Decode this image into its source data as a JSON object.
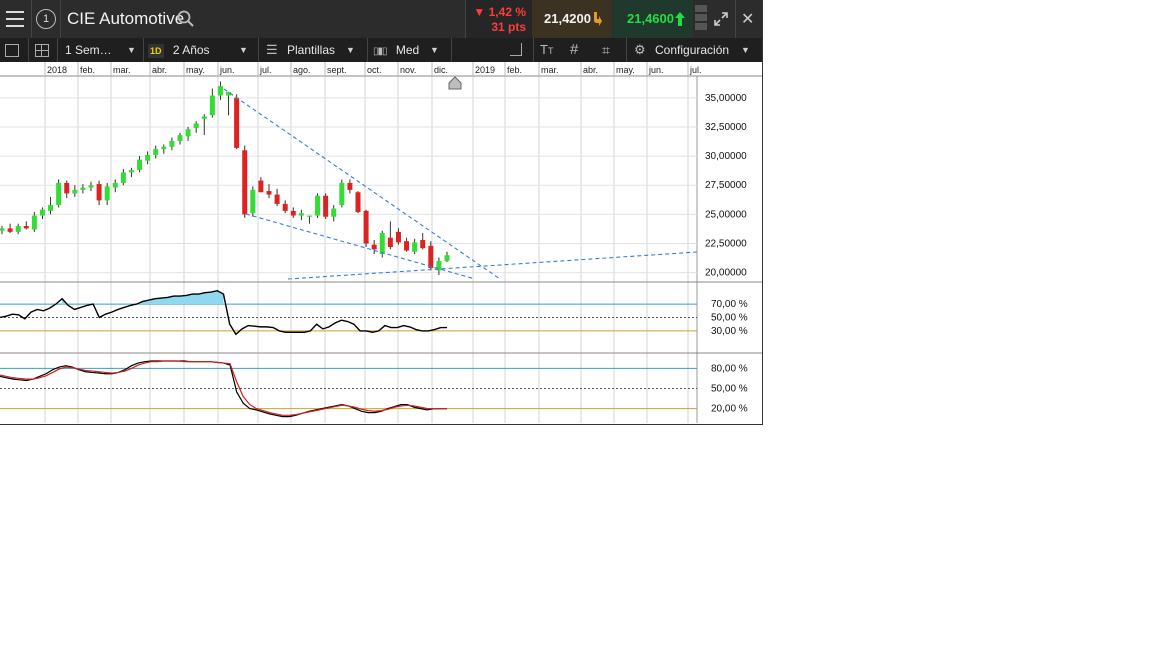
{
  "header": {
    "title": "CIE Automotive",
    "change_pct": "▼ 1,42 %",
    "change_pts": "31 pts",
    "bid": "21,4200",
    "ask": "21,4600",
    "colors": {
      "down": "#ff3b3b",
      "bid_bg": "#3b3222",
      "ask_bg": "#1f3a2c",
      "ask_text": "#22dd44"
    }
  },
  "toolbar": {
    "interval": "1 Sem…",
    "interval_badge": "1D",
    "range": "2 Años",
    "templates": "Plantillas",
    "price_type": "Med",
    "config": "Configuración"
  },
  "chart_data": [
    {
      "type": "candlestick",
      "x_ticks": [
        "2018",
        "feb.",
        "mar.",
        "abr.",
        "may.",
        "jun.",
        "jul.",
        "ago.",
        "sept.",
        "oct.",
        "nov.",
        "dic.",
        "2019",
        "feb.",
        "mar.",
        "abr.",
        "may.",
        "jun.",
        "jul."
      ],
      "y_ticks": [
        "35,00000",
        "32,50000",
        "30,00000",
        "27,50000",
        "25,00000",
        "22,50000",
        "20,00000"
      ],
      "ylim": [
        19.2,
        36.7
      ],
      "colors": {
        "up": "#33dd33",
        "down": "#dd2222",
        "trendline": "#3a7ecf"
      },
      "candles": [
        {
          "o": 23.6,
          "h": 24.0,
          "l": 23.3,
          "c": 23.8
        },
        {
          "o": 23.8,
          "h": 24.2,
          "l": 23.4,
          "c": 23.5
        },
        {
          "o": 23.5,
          "h": 24.2,
          "l": 23.3,
          "c": 24.0
        },
        {
          "o": 24.0,
          "h": 24.4,
          "l": 23.7,
          "c": 23.8
        },
        {
          "o": 23.7,
          "h": 25.2,
          "l": 23.5,
          "c": 24.9
        },
        {
          "o": 24.9,
          "h": 25.6,
          "l": 24.6,
          "c": 25.4
        },
        {
          "o": 25.3,
          "h": 26.5,
          "l": 25.0,
          "c": 25.8
        },
        {
          "o": 25.8,
          "h": 28.0,
          "l": 25.6,
          "c": 27.7
        },
        {
          "o": 27.7,
          "h": 27.9,
          "l": 26.4,
          "c": 26.8
        },
        {
          "o": 26.8,
          "h": 27.5,
          "l": 26.5,
          "c": 27.1
        },
        {
          "o": 27.1,
          "h": 27.6,
          "l": 26.8,
          "c": 27.3
        },
        {
          "o": 27.3,
          "h": 27.8,
          "l": 27.0,
          "c": 27.5
        },
        {
          "o": 27.6,
          "h": 27.9,
          "l": 25.8,
          "c": 26.2
        },
        {
          "o": 26.2,
          "h": 27.7,
          "l": 25.8,
          "c": 27.4
        },
        {
          "o": 27.3,
          "h": 28.0,
          "l": 26.9,
          "c": 27.7
        },
        {
          "o": 27.7,
          "h": 28.9,
          "l": 27.5,
          "c": 28.6
        },
        {
          "o": 28.6,
          "h": 29.0,
          "l": 28.2,
          "c": 28.8
        },
        {
          "o": 28.8,
          "h": 30.0,
          "l": 28.6,
          "c": 29.7
        },
        {
          "o": 29.6,
          "h": 30.4,
          "l": 29.3,
          "c": 30.1
        },
        {
          "o": 30.1,
          "h": 30.9,
          "l": 29.8,
          "c": 30.6
        },
        {
          "o": 30.6,
          "h": 31.0,
          "l": 30.2,
          "c": 30.8
        },
        {
          "o": 30.8,
          "h": 31.6,
          "l": 30.5,
          "c": 31.3
        },
        {
          "o": 31.3,
          "h": 32.0,
          "l": 31.0,
          "c": 31.8
        },
        {
          "o": 31.7,
          "h": 32.5,
          "l": 31.3,
          "c": 32.3
        },
        {
          "o": 32.4,
          "h": 33.0,
          "l": 32.0,
          "c": 32.8
        },
        {
          "o": 33.2,
          "h": 33.6,
          "l": 31.8,
          "c": 33.4
        },
        {
          "o": 33.5,
          "h": 35.8,
          "l": 33.3,
          "c": 35.2
        },
        {
          "o": 35.2,
          "h": 36.4,
          "l": 34.8,
          "c": 36.0
        },
        {
          "o": 35.2,
          "h": 35.5,
          "l": 33.5,
          "c": 35.5
        },
        {
          "o": 35.0,
          "h": 35.3,
          "l": 30.6,
          "c": 30.7
        },
        {
          "o": 30.5,
          "h": 30.9,
          "l": 24.7,
          "c": 25.0
        },
        {
          "o": 25.1,
          "h": 27.4,
          "l": 24.8,
          "c": 27.1
        },
        {
          "o": 27.9,
          "h": 28.2,
          "l": 26.9,
          "c": 26.9
        },
        {
          "o": 27.0,
          "h": 27.6,
          "l": 26.4,
          "c": 26.7
        },
        {
          "o": 26.7,
          "h": 27.2,
          "l": 25.7,
          "c": 25.9
        },
        {
          "o": 25.9,
          "h": 26.2,
          "l": 25.1,
          "c": 25.3
        },
        {
          "o": 25.3,
          "h": 25.6,
          "l": 24.7,
          "c": 24.9
        },
        {
          "o": 24.9,
          "h": 25.4,
          "l": 24.5,
          "c": 25.1
        },
        {
          "o": 24.8,
          "h": 24.9,
          "l": 24.2,
          "c": 24.9
        },
        {
          "o": 24.9,
          "h": 26.8,
          "l": 24.7,
          "c": 26.6
        },
        {
          "o": 26.6,
          "h": 26.8,
          "l": 24.6,
          "c": 24.8
        },
        {
          "o": 24.8,
          "h": 25.8,
          "l": 24.4,
          "c": 25.5
        },
        {
          "o": 25.8,
          "h": 28.0,
          "l": 25.6,
          "c": 27.7
        },
        {
          "o": 27.7,
          "h": 28.0,
          "l": 26.8,
          "c": 27.1
        },
        {
          "o": 26.9,
          "h": 27.0,
          "l": 25.1,
          "c": 25.2
        },
        {
          "o": 25.3,
          "h": 25.4,
          "l": 22.2,
          "c": 22.5
        },
        {
          "o": 22.4,
          "h": 22.8,
          "l": 21.6,
          "c": 22.0
        },
        {
          "o": 21.6,
          "h": 23.6,
          "l": 21.3,
          "c": 23.4
        },
        {
          "o": 23.0,
          "h": 24.4,
          "l": 22.0,
          "c": 22.2
        },
        {
          "o": 23.5,
          "h": 23.8,
          "l": 22.4,
          "c": 22.6
        },
        {
          "o": 22.7,
          "h": 23.0,
          "l": 21.8,
          "c": 21.9
        },
        {
          "o": 21.8,
          "h": 22.9,
          "l": 21.6,
          "c": 22.6
        },
        {
          "o": 22.8,
          "h": 23.4,
          "l": 22.0,
          "c": 22.1
        },
        {
          "o": 22.3,
          "h": 22.7,
          "l": 20.2,
          "c": 20.4
        },
        {
          "o": 20.2,
          "h": 21.3,
          "l": 19.8,
          "c": 21.0
        },
        {
          "o": 21.0,
          "h": 21.8,
          "l": 20.9,
          "c": 21.5
        }
      ]
    },
    {
      "type": "line",
      "y_ticks": [
        "70,00 %",
        "50,00 %",
        "30,00 %"
      ],
      "ylim": [
        0,
        100
      ],
      "levels": [
        70,
        50,
        30
      ],
      "colors": {
        "line": "#000000",
        "fill": "#8fd8f0",
        "upper": "#3a9fbf",
        "lower": "#c9a428"
      },
      "values": [
        50,
        52,
        55,
        54,
        48,
        58,
        62,
        60,
        64,
        70,
        78,
        68,
        62,
        65,
        68,
        70,
        50,
        55,
        58,
        62,
        65,
        68,
        70,
        74,
        76,
        78,
        79,
        80,
        82,
        82,
        83,
        85,
        85,
        87,
        88,
        90,
        85,
        40,
        25,
        33,
        38,
        37,
        36,
        36,
        35,
        30,
        28,
        28,
        28,
        28,
        30,
        40,
        33,
        36,
        42,
        46,
        44,
        40,
        30,
        30,
        28,
        30,
        38,
        35,
        35,
        38,
        36,
        32,
        30,
        30,
        32,
        35,
        35
      ]
    },
    {
      "type": "line",
      "y_ticks": [
        "80,00 %",
        "50,00 %",
        "20,00 %"
      ],
      "ylim": [
        0,
        100
      ],
      "levels": [
        80,
        50,
        20
      ],
      "colors": {
        "k": "#000000",
        "d": "#cc2222",
        "upper": "#3a9fbf",
        "lower": "#c9a428"
      },
      "series": [
        {
          "values": [
            68,
            66,
            64,
            63,
            62,
            64,
            68,
            72,
            78,
            82,
            84,
            82,
            78,
            75,
            74,
            73,
            72,
            72,
            74,
            78,
            84,
            88,
            90,
            91,
            91,
            91,
            91,
            91,
            91,
            90,
            90,
            90,
            90,
            89,
            88,
            85,
            45,
            28,
            20,
            18,
            15,
            12,
            10,
            8,
            8,
            10,
            13,
            16,
            18,
            20,
            22,
            24,
            26,
            24,
            20,
            16,
            14,
            14,
            16,
            20,
            23,
            26,
            26,
            22,
            20,
            18,
            20,
            20,
            20
          ]
        },
        {
          "values": [
            70,
            68,
            66,
            65,
            64,
            64,
            66,
            69,
            74,
            79,
            82,
            81,
            79,
            77,
            76,
            75,
            74,
            73,
            74,
            76,
            80,
            85,
            88,
            90,
            90,
            91,
            91,
            91,
            90,
            90,
            90,
            90,
            90,
            89,
            88,
            87,
            60,
            38,
            26,
            20,
            17,
            14,
            12,
            10,
            10,
            11,
            13,
            15,
            17,
            19,
            21,
            23,
            25,
            24,
            22,
            19,
            17,
            16,
            17,
            19,
            22,
            24,
            25,
            24,
            22,
            20,
            20,
            20,
            20
          ]
        }
      ]
    }
  ]
}
